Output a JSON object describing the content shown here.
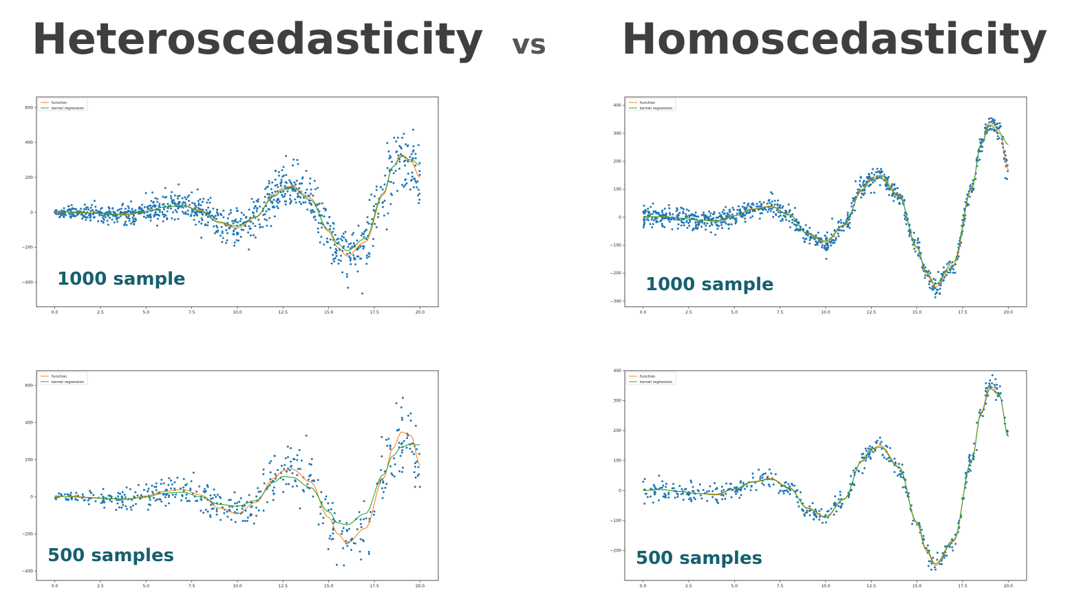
{
  "titles": {
    "left": "Heteroscedasticity",
    "vs": "vs",
    "right": "Homoscedasticity"
  },
  "legend": {
    "function": "function",
    "kernel": "kernel regression"
  },
  "colors": {
    "points": "#1f77b4",
    "function": "#ff7f0e",
    "kernel": "#2ca02c",
    "annotation": "#16606e",
    "title": "#3f3f3f"
  },
  "chart_data": [
    {
      "id": "hetero-1000",
      "type": "scatter",
      "annotation": "1000 sample",
      "n_points": 1000,
      "noise": "heteroscedastic",
      "xlim": [
        -1,
        21
      ],
      "ylim": [
        -540,
        660
      ],
      "xticks": [
        0.0,
        2.5,
        5.0,
        7.5,
        10.0,
        12.5,
        15.0,
        17.5,
        20.0
      ],
      "yticks": [
        -400,
        -200,
        0,
        200,
        400,
        600
      ],
      "function": {
        "x": [
          0,
          1,
          2,
          3,
          4,
          5,
          6,
          7,
          8,
          9,
          10,
          11,
          12,
          12.5,
          13,
          14,
          15,
          15.5,
          16,
          17,
          18,
          18.5,
          19,
          19.5,
          20
        ],
        "y": [
          0,
          3,
          -3,
          -10,
          -15,
          5,
          30,
          40,
          10,
          -60,
          -90,
          -30,
          100,
          140,
          150,
          80,
          -110,
          -200,
          -250,
          -170,
          100,
          260,
          330,
          290,
          200
        ]
      },
      "kernel": {
        "x": [
          0,
          1,
          2,
          3,
          4,
          5,
          6,
          7,
          8,
          9,
          10,
          11,
          12,
          12.5,
          13,
          14,
          15,
          15.5,
          16,
          17,
          18,
          18.5,
          19,
          19.5,
          20
        ],
        "y": [
          5,
          0,
          -5,
          -10,
          -10,
          5,
          30,
          38,
          5,
          -55,
          -80,
          -25,
          90,
          130,
          140,
          70,
          -100,
          -180,
          -220,
          -150,
          110,
          260,
          320,
          300,
          270
        ]
      }
    },
    {
      "id": "homo-1000",
      "type": "scatter",
      "annotation": "1000 sample",
      "n_points": 1000,
      "noise": "homoscedastic",
      "xlim": [
        -1,
        21
      ],
      "ylim": [
        -320,
        430
      ],
      "xticks": [
        0.0,
        2.5,
        5.0,
        7.5,
        10.0,
        12.5,
        15.0,
        17.5,
        20.0
      ],
      "yticks": [
        -300,
        -200,
        -100,
        0,
        100,
        200,
        300,
        400
      ],
      "function": {
        "x": [
          0,
          1,
          2,
          3,
          4,
          5,
          6,
          7,
          8,
          9,
          10,
          11,
          12,
          12.5,
          13,
          14,
          15,
          15.5,
          16,
          17,
          18,
          18.5,
          19,
          19.5,
          20
        ],
        "y": [
          0,
          3,
          -3,
          -10,
          -15,
          5,
          30,
          40,
          10,
          -60,
          -90,
          -30,
          100,
          140,
          150,
          80,
          -110,
          -200,
          -250,
          -170,
          100,
          260,
          340,
          310,
          170
        ]
      },
      "kernel": {
        "x": [
          0,
          1,
          2,
          3,
          4,
          5,
          6,
          7,
          8,
          9,
          10,
          11,
          12,
          12.5,
          13,
          14,
          15,
          15.5,
          16,
          17,
          18,
          18.5,
          19,
          19.5,
          20
        ],
        "y": [
          2,
          2,
          -3,
          -10,
          -12,
          5,
          28,
          38,
          8,
          -58,
          -85,
          -28,
          95,
          135,
          140,
          75,
          -105,
          -195,
          -240,
          -160,
          105,
          260,
          330,
          300,
          260
        ]
      }
    },
    {
      "id": "hetero-500",
      "type": "scatter",
      "annotation": "500 samples",
      "n_points": 500,
      "noise": "heteroscedastic",
      "xlim": [
        -1,
        21
      ],
      "ylim": [
        -450,
        680
      ],
      "xticks": [
        0.0,
        2.5,
        5.0,
        7.5,
        10.0,
        12.5,
        15.0,
        17.5,
        20.0
      ],
      "yticks": [
        -400,
        -200,
        0,
        200,
        400,
        600
      ],
      "function": {
        "x": [
          0,
          1,
          2,
          3,
          4,
          5,
          6,
          7,
          8,
          9,
          10,
          11,
          12,
          12.5,
          13,
          14,
          15,
          15.5,
          16,
          17,
          18,
          18.5,
          19,
          19.5,
          20
        ],
        "y": [
          0,
          3,
          -3,
          -10,
          -15,
          5,
          30,
          40,
          10,
          -60,
          -90,
          -30,
          100,
          140,
          150,
          80,
          -110,
          -200,
          -250,
          -170,
          100,
          260,
          350,
          330,
          170
        ]
      },
      "kernel": {
        "x": [
          0,
          1,
          2,
          3,
          4,
          5,
          6,
          7,
          8,
          9,
          10,
          11,
          12,
          12.5,
          13,
          14,
          15,
          15.5,
          16,
          17,
          18,
          18.5,
          19,
          19.5,
          20
        ],
        "y": [
          5,
          0,
          -5,
          -10,
          -10,
          0,
          20,
          25,
          0,
          -40,
          -50,
          -20,
          80,
          110,
          105,
          50,
          -80,
          -140,
          -150,
          -90,
          120,
          220,
          270,
          285,
          280
        ]
      }
    },
    {
      "id": "homo-500",
      "type": "scatter",
      "annotation": "500 samples",
      "n_points": 500,
      "noise": "homoscedastic",
      "xlim": [
        -1,
        21
      ],
      "ylim": [
        -300,
        400
      ],
      "xticks": [
        0.0,
        2.5,
        5.0,
        7.5,
        10.0,
        12.5,
        15.0,
        17.5,
        20.0
      ],
      "yticks": [
        -200,
        -100,
        0,
        100,
        200,
        300,
        400
      ],
      "function": {
        "x": [
          0,
          1,
          2,
          3,
          4,
          5,
          6,
          7,
          8,
          9,
          10,
          11,
          12,
          12.5,
          13,
          14,
          15,
          15.5,
          16,
          17,
          18,
          18.5,
          19,
          19.5,
          20
        ],
        "y": [
          0,
          3,
          -3,
          -10,
          -15,
          5,
          30,
          40,
          10,
          -60,
          -90,
          -30,
          100,
          140,
          150,
          80,
          -110,
          -200,
          -250,
          -170,
          100,
          260,
          350,
          320,
          180
        ]
      },
      "kernel": {
        "x": [
          0,
          1,
          2,
          3,
          4,
          5,
          6,
          7,
          8,
          9,
          10,
          11,
          12,
          12.5,
          13,
          14,
          15,
          15.5,
          16,
          17,
          18,
          18.5,
          19,
          19.5,
          20
        ],
        "y": [
          0,
          3,
          -3,
          -10,
          -12,
          5,
          28,
          38,
          8,
          -58,
          -88,
          -28,
          98,
          138,
          145,
          78,
          -105,
          -195,
          -245,
          -165,
          100,
          255,
          340,
          320,
          180
        ]
      }
    }
  ]
}
